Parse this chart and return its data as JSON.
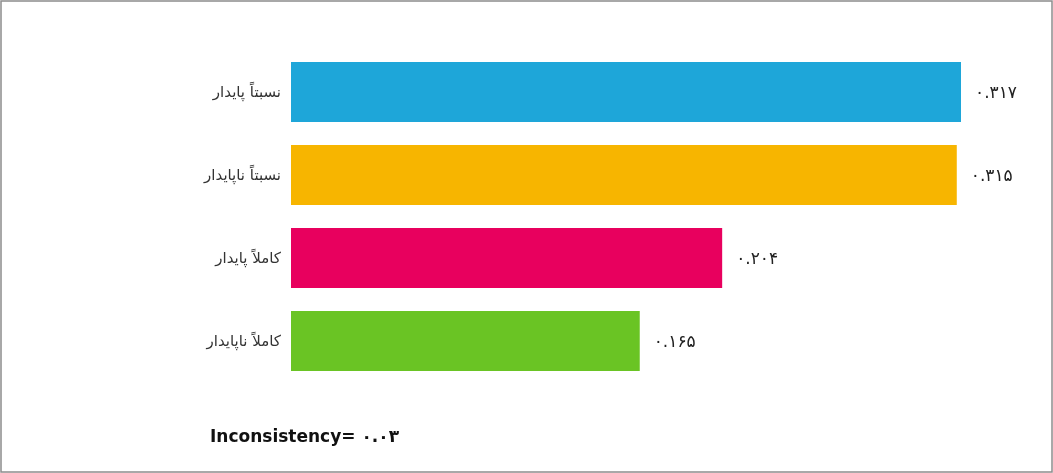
{
  "chart_data": {
    "type": "bar",
    "orientation": "horizontal",
    "categories": [
      "نسبتاً پایدار",
      "نسبتاً ناپایدار",
      "کاملاً پایدار",
      "کاملاً ناپایدار"
    ],
    "values": [
      0.317,
      0.315,
      0.204,
      0.165
    ],
    "colors": [
      "#1ea6d9",
      "#f7b500",
      "#e8005e",
      "#6ac424"
    ],
    "value_labels": [
      "۰.۳۱۷",
      "۰.۳۱۵",
      "۰.۲۰۴",
      "۰.۱۶۵"
    ],
    "annotations": [
      "Inconsistency= ۰.۰۳"
    ]
  }
}
